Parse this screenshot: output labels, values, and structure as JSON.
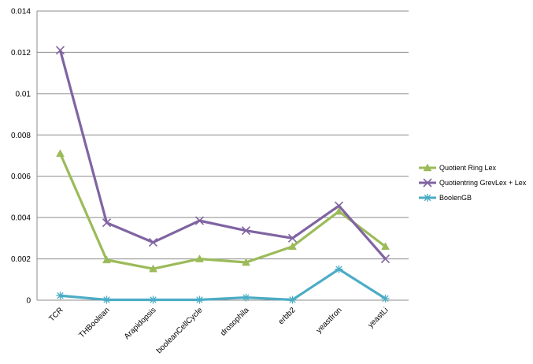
{
  "chart_data": {
    "type": "line",
    "title": "",
    "xlabel": "",
    "ylabel": "",
    "categories": [
      "TCR",
      "THBoolean",
      "Arapidopsis",
      "booleanCellCycle",
      "drosophila",
      "erbb2",
      "yeastIron",
      "yeastLi"
    ],
    "ylim": [
      0,
      0.014
    ],
    "yticks": [
      "0",
      "0.002",
      "0.004",
      "0.006",
      "0.008",
      "0.01",
      "0.012",
      "0.014"
    ],
    "grid": "horizontal",
    "legend_position": "right",
    "series": [
      {
        "name": "Quotient Ring Lex",
        "color": "#9bbb59",
        "marker": "triangle",
        "values": [
          0.0071,
          0.00195,
          0.00152,
          0.002,
          0.00183,
          0.0026,
          0.0043,
          0.0026
        ]
      },
      {
        "name": "Quotientring GrevLex + Lex",
        "color": "#8064a2",
        "marker": "x",
        "values": [
          0.0121,
          0.00375,
          0.0028,
          0.00385,
          0.00337,
          0.003,
          0.00457,
          0.002
        ]
      },
      {
        "name": "BoolenGB",
        "color": "#4bacc6",
        "marker": "star",
        "values": [
          0.00022,
          2e-05,
          2e-05,
          2e-05,
          0.00013,
          2e-05,
          0.0015,
          8e-05
        ]
      }
    ]
  }
}
